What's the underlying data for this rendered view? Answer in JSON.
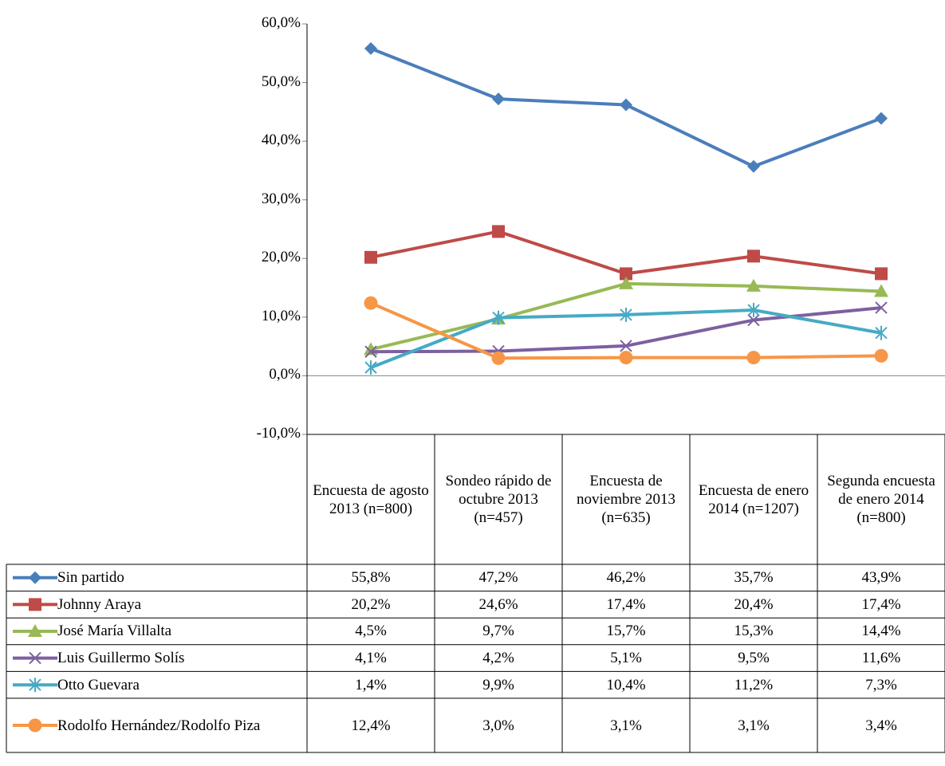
{
  "chart_data": {
    "type": "line",
    "categories": [
      "Encuesta de agosto 2013 (n=800)",
      "Sondeo rápido de octubre 2013 (n=457)",
      "Encuesta de noviembre 2013 (n=635)",
      "Encuesta de enero 2014 (n=1207)",
      "Segunda encuesta de enero 2014 (n=800)"
    ],
    "ylim": [
      -10,
      60
    ],
    "yticks": [
      {
        "value": -10,
        "label": "-10,0%"
      },
      {
        "value": 0,
        "label": "0,0%"
      },
      {
        "value": 10,
        "label": "10,0%"
      },
      {
        "value": 20,
        "label": "20,0%"
      },
      {
        "value": 30,
        "label": "30,0%"
      },
      {
        "value": 40,
        "label": "40,0%"
      },
      {
        "value": 50,
        "label": "50,0%"
      },
      {
        "value": 60,
        "label": "60,0%"
      }
    ],
    "grid": false,
    "series": [
      {
        "name": "Sin partido",
        "color": "#4a7ebb",
        "marker": "diamond",
        "values": [
          55.8,
          47.2,
          46.2,
          35.7,
          43.9
        ],
        "value_labels": [
          "55,8%",
          "47,2%",
          "46,2%",
          "35,7%",
          "43,9%"
        ]
      },
      {
        "name": "Johnny Araya",
        "color": "#be4b48",
        "marker": "square",
        "values": [
          20.2,
          24.6,
          17.4,
          20.4,
          17.4
        ],
        "value_labels": [
          "20,2%",
          "24,6%",
          "17,4%",
          "20,4%",
          "17,4%"
        ]
      },
      {
        "name": "José María Villalta",
        "color": "#98b954",
        "marker": "triangle",
        "values": [
          4.5,
          9.7,
          15.7,
          15.3,
          14.4
        ],
        "value_labels": [
          "4,5%",
          "9,7%",
          "15,7%",
          "15,3%",
          "14,4%"
        ]
      },
      {
        "name": "Luis Guillermo Solís",
        "color": "#7d60a0",
        "marker": "x",
        "values": [
          4.1,
          4.2,
          5.1,
          9.5,
          11.6
        ],
        "value_labels": [
          "4,1%",
          "4,2%",
          "5,1%",
          "9,5%",
          "11,6%"
        ]
      },
      {
        "name": "Otto Guevara",
        "color": "#46aac5",
        "marker": "star",
        "values": [
          1.4,
          9.9,
          10.4,
          11.2,
          7.3
        ],
        "value_labels": [
          "1,4%",
          "9,9%",
          "10,4%",
          "11,2%",
          "7,3%"
        ]
      },
      {
        "name": "Rodolfo Hernández/Rodolfo Piza",
        "color": "#f79646",
        "marker": "circle",
        "values": [
          12.4,
          3.0,
          3.1,
          3.1,
          3.4
        ],
        "value_labels": [
          "12,4%",
          "3,0%",
          "3,1%",
          "3,1%",
          "3,4%"
        ]
      }
    ]
  }
}
